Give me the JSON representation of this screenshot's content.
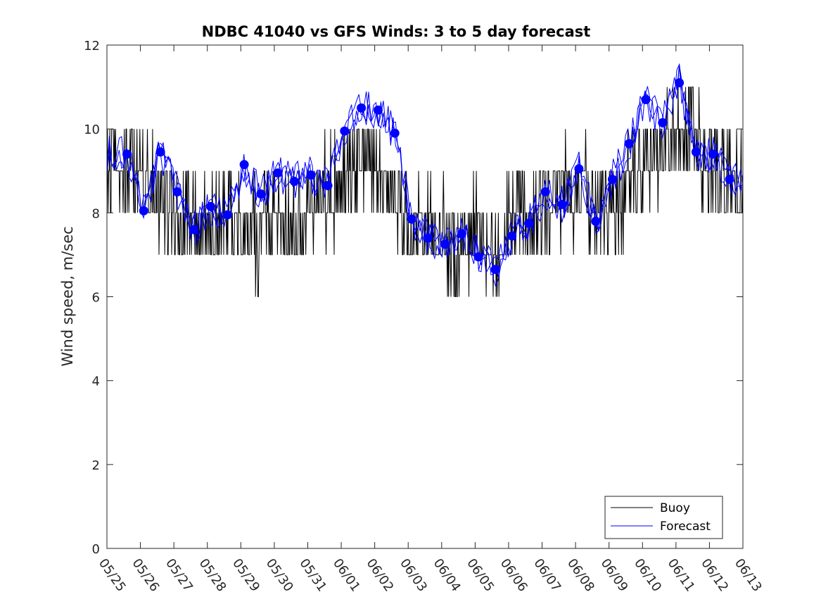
{
  "chart_data": {
    "type": "line",
    "title": "NDBC 41040 vs GFS Winds: 3 to 5 day forecast",
    "xlabel": "",
    "ylabel": "Wind speed, m/sec",
    "ylim": [
      0,
      12
    ],
    "yticks": [
      "0",
      "2",
      "4",
      "6",
      "8",
      "10",
      "12"
    ],
    "xlim": [
      0,
      19
    ],
    "xticks": [
      "05/25",
      "05/26",
      "05/27",
      "05/28",
      "05/29",
      "05/30",
      "05/31",
      "06/01",
      "06/02",
      "06/03",
      "06/04",
      "06/05",
      "06/06",
      "06/07",
      "06/08",
      "06/09",
      "06/10",
      "06/11",
      "06/12",
      "06/13"
    ],
    "grid": false,
    "legend": {
      "position": "bottom-right",
      "entries": [
        "Buoy",
        "Forecast"
      ]
    },
    "colors": {
      "buoy": "#000000",
      "forecast": "#0000ff",
      "points": "#0000ff"
    },
    "buoy_levels": {
      "x": [
        0.0,
        0.5,
        1.0,
        1.5,
        2.0,
        2.5,
        3.0,
        3.5,
        4.0,
        4.5,
        5.0,
        5.5,
        6.0,
        6.5,
        7.0,
        7.5,
        8.0,
        8.5,
        9.0,
        9.5,
        10.0,
        10.5,
        11.0,
        11.5,
        12.0,
        12.5,
        13.0,
        13.5,
        14.0,
        14.5,
        15.0,
        15.5,
        16.0,
        16.5,
        17.0,
        17.5,
        18.0,
        18.5,
        19.0
      ],
      "y": [
        9.5,
        9,
        9,
        8.5,
        8,
        8,
        7.5,
        8,
        7.5,
        7.5,
        8,
        7.5,
        8.5,
        8.5,
        8.5,
        9,
        9,
        8.5,
        7.5,
        7.5,
        7.5,
        7,
        7.5,
        7,
        7.5,
        8,
        8,
        8.5,
        8.5,
        8.5,
        8,
        8.5,
        9,
        9.5,
        10,
        10,
        9,
        9,
        8.5
      ]
    },
    "forecast_points": {
      "x": [
        0.6,
        1.1,
        1.6,
        2.1,
        2.6,
        3.1,
        3.6,
        4.1,
        4.6,
        5.1,
        5.6,
        6.1,
        6.6,
        7.1,
        7.6,
        8.1,
        8.6,
        9.1,
        9.6,
        10.1,
        10.6,
        11.1,
        11.6,
        12.1,
        12.6,
        13.1,
        13.6,
        14.1,
        14.6,
        15.1,
        15.6,
        16.1,
        16.6,
        17.1,
        17.6,
        18.1,
        18.6
      ],
      "y": [
        9.4,
        8.05,
        9.45,
        8.5,
        7.6,
        8.15,
        7.95,
        9.15,
        8.45,
        8.95,
        8.75,
        8.9,
        8.65,
        9.95,
        10.5,
        10.45,
        9.9,
        7.85,
        7.4,
        7.25,
        7.5,
        6.95,
        6.65,
        7.45,
        7.75,
        8.5,
        8.2,
        9.05,
        7.8,
        8.8,
        9.65,
        10.7,
        10.15,
        11.1,
        9.45,
        9.4,
        8.8
      ]
    },
    "forecast_runs": 3
  }
}
